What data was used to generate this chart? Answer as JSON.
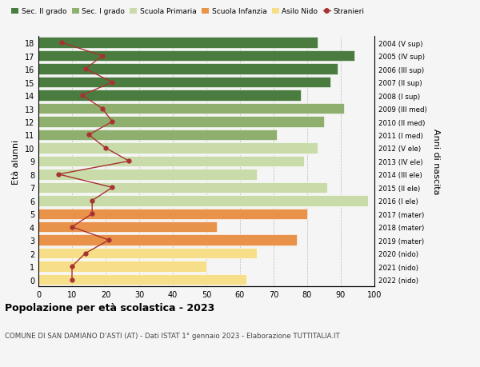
{
  "ages": [
    0,
    1,
    2,
    3,
    4,
    5,
    6,
    7,
    8,
    9,
    10,
    11,
    12,
    13,
    14,
    15,
    16,
    17,
    18
  ],
  "right_labels": [
    "2022 (nido)",
    "2021 (nido)",
    "2020 (nido)",
    "2019 (mater)",
    "2018 (mater)",
    "2017 (mater)",
    "2016 (I ele)",
    "2015 (II ele)",
    "2014 (III ele)",
    "2013 (IV ele)",
    "2012 (V ele)",
    "2011 (I med)",
    "2010 (II med)",
    "2009 (III med)",
    "2008 (I sup)",
    "2007 (II sup)",
    "2006 (III sup)",
    "2005 (IV sup)",
    "2004 (V sup)"
  ],
  "bar_values": [
    62,
    50,
    65,
    77,
    53,
    80,
    98,
    86,
    65,
    79,
    83,
    71,
    85,
    91,
    78,
    87,
    89,
    94,
    83
  ],
  "bar_colors": [
    "#f7df8a",
    "#f7df8a",
    "#f7df8a",
    "#e8924a",
    "#e8924a",
    "#e8924a",
    "#c8dba8",
    "#c8dba8",
    "#c8dba8",
    "#c8dba8",
    "#c8dba8",
    "#8faf6e",
    "#8faf6e",
    "#8faf6e",
    "#4a7c3f",
    "#4a7c3f",
    "#4a7c3f",
    "#4a7c3f",
    "#4a7c3f"
  ],
  "stranieri_values": [
    10,
    10,
    14,
    21,
    10,
    16,
    16,
    22,
    6,
    27,
    20,
    15,
    22,
    19,
    13,
    22,
    14,
    19,
    7
  ],
  "ylabel_left": "Età alunni",
  "ylabel_right": "Anni di nascita",
  "xlim": [
    0,
    100
  ],
  "xticks": [
    0,
    10,
    20,
    30,
    40,
    50,
    60,
    70,
    80,
    90,
    100
  ],
  "title": "Popolazione per età scolastica - 2023",
  "subtitle": "COMUNE DI SAN DAMIANO D'ASTI (AT) - Dati ISTAT 1° gennaio 2023 - Elaborazione TUTTITALIA.IT",
  "legend_labels": [
    "Sec. II grado",
    "Sec. I grado",
    "Scuola Primaria",
    "Scuola Infanzia",
    "Asilo Nido",
    "Stranieri"
  ],
  "legend_colors": [
    "#4a7c3f",
    "#8faf6e",
    "#c8dba8",
    "#e8924a",
    "#f7df8a",
    "#a83232"
  ],
  "stranieri_color": "#a83232",
  "bg_color": "#f5f5f5"
}
